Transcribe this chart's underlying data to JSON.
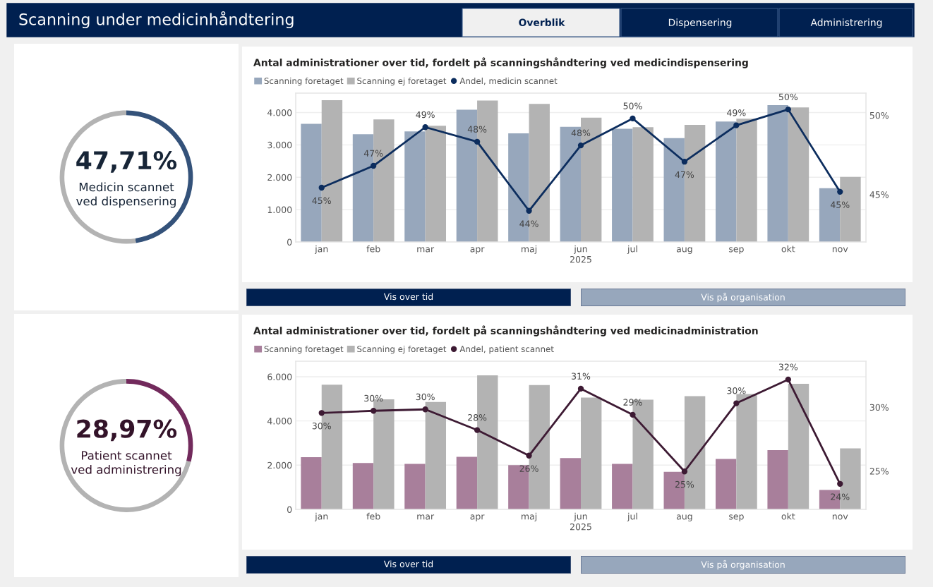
{
  "chart_data": [
    {
      "type": "other",
      "title": "Scanning under medicinhåndtering",
      "annotations": [
        "Overblik",
        "Dispensering",
        "Administrering"
      ]
    },
    {
      "type": "donut",
      "categories": [
        null,
        null
      ],
      "values": [
        47.71,
        52.29
      ],
      "colors": [
        "#34527a",
        "#b3b3b3"
      ],
      "value_labels": [
        "47,71%",
        null
      ],
      "annotations": [
        "Medicin scannet\nved dispensering"
      ]
    },
    {
      "type": "bar",
      "title": "Antal administrationer over tid, fordelt på scanningshåndtering ved medicindispensering",
      "xlabel": "2025",
      "categories": [
        "jan",
        "feb",
        "mar",
        "apr",
        "maj",
        "jun",
        "jul",
        "aug",
        "sep",
        "okt",
        "nov"
      ],
      "series": [
        {
          "name": "Scanning foretaget",
          "color": "#97a7bc",
          "values": [
            3650,
            3330,
            3420,
            4090,
            3360,
            3560,
            3500,
            3210,
            3720,
            4230,
            1660
          ]
        },
        {
          "name": "Scanning ej foretaget",
          "color": "#b3b3b3",
          "values": [
            4380,
            3790,
            3590,
            4370,
            4270,
            3840,
            3550,
            3620,
            3810,
            4160,
            2010
          ]
        },
        {
          "name": "Andel, medicin scannet",
          "type": "line",
          "axis": "y2",
          "color": "#0c2d5e",
          "values": [
            45.43,
            46.81,
            49.25,
            48.33,
            43.97,
            48.1,
            49.8,
            47.07,
            49.37,
            50.37,
            45.17
          ],
          "value_labels": [
            "45%",
            "47%",
            "49%",
            "48%",
            "44%",
            "48%",
            "50%",
            "47%",
            "49%",
            "50%",
            "45%"
          ]
        }
      ],
      "ylim": [
        0,
        4600
      ],
      "yticks": [
        {
          "value": 0,
          "label": "0"
        },
        {
          "value": 1000,
          "label": "1.000"
        },
        {
          "value": 2000,
          "label": "2.000"
        },
        {
          "value": 3000,
          "label": "3.000"
        },
        {
          "value": 4000,
          "label": "4.000"
        }
      ],
      "y2lim": [
        42.0,
        51.4
      ],
      "y2ticks": [
        {
          "value": 45,
          "label": "45%"
        },
        {
          "value": 50,
          "label": "50%"
        }
      ],
      "grid": "y",
      "legend": "top left",
      "marker": "circle",
      "line_style": "solid",
      "annotations": [
        "Vis over tid",
        "Vis på organisation"
      ]
    },
    {
      "type": "donut",
      "categories": [
        null,
        null
      ],
      "values": [
        28.97,
        71.03
      ],
      "colors": [
        "#722a5c",
        "#b3b3b3"
      ],
      "value_labels": [
        "28,97%",
        null
      ],
      "annotations": [
        "Patient scannet\nved administrering"
      ]
    },
    {
      "type": "bar",
      "title": "Antal administrationer over tid, fordelt på scanningshåndtering ved medicinadministration",
      "xlabel": "2025",
      "categories": [
        "jan",
        "feb",
        "mar",
        "apr",
        "maj",
        "jun",
        "jul",
        "aug",
        "sep",
        "okt",
        "nov"
      ],
      "series": [
        {
          "name": "Scanning foretaget",
          "color": "#a87f9b",
          "values": [
            2360,
            2100,
            2060,
            2380,
            2000,
            2320,
            2060,
            1700,
            2280,
            2680,
            880
          ]
        },
        {
          "name": "Scanning ej foretaget",
          "color": "#b3b3b3",
          "values": [
            5640,
            4980,
            4860,
            6060,
            5620,
            5060,
            4960,
            5120,
            5220,
            5680,
            2760
          ]
        },
        {
          "name": "Andel, patient scannet",
          "type": "line",
          "axis": "y2",
          "color": "#3d1a33",
          "values": [
            29.55,
            29.72,
            29.83,
            28.21,
            26.21,
            31.45,
            29.41,
            24.97,
            30.31,
            32.17,
            24.0
          ],
          "value_labels": [
            "30%",
            "30%",
            "30%",
            "28%",
            "26%",
            "31%",
            "29%",
            "25%",
            "30%",
            "32%",
            "24%"
          ]
        }
      ],
      "ylim": [
        0,
        6700
      ],
      "yticks": [
        {
          "value": 0,
          "label": "0"
        },
        {
          "value": 2000,
          "label": "2.000"
        },
        {
          "value": 4000,
          "label": "4.000"
        },
        {
          "value": 6000,
          "label": "6.000"
        }
      ],
      "y2lim": [
        22.0,
        33.6
      ],
      "y2ticks": [
        {
          "value": 25,
          "label": "25%"
        },
        {
          "value": 30,
          "label": "30%"
        }
      ],
      "grid": "y",
      "legend": "top left",
      "marker": "circle",
      "line_style": "solid",
      "annotations": [
        "Vis over tid",
        "Vis på organisation"
      ]
    }
  ]
}
